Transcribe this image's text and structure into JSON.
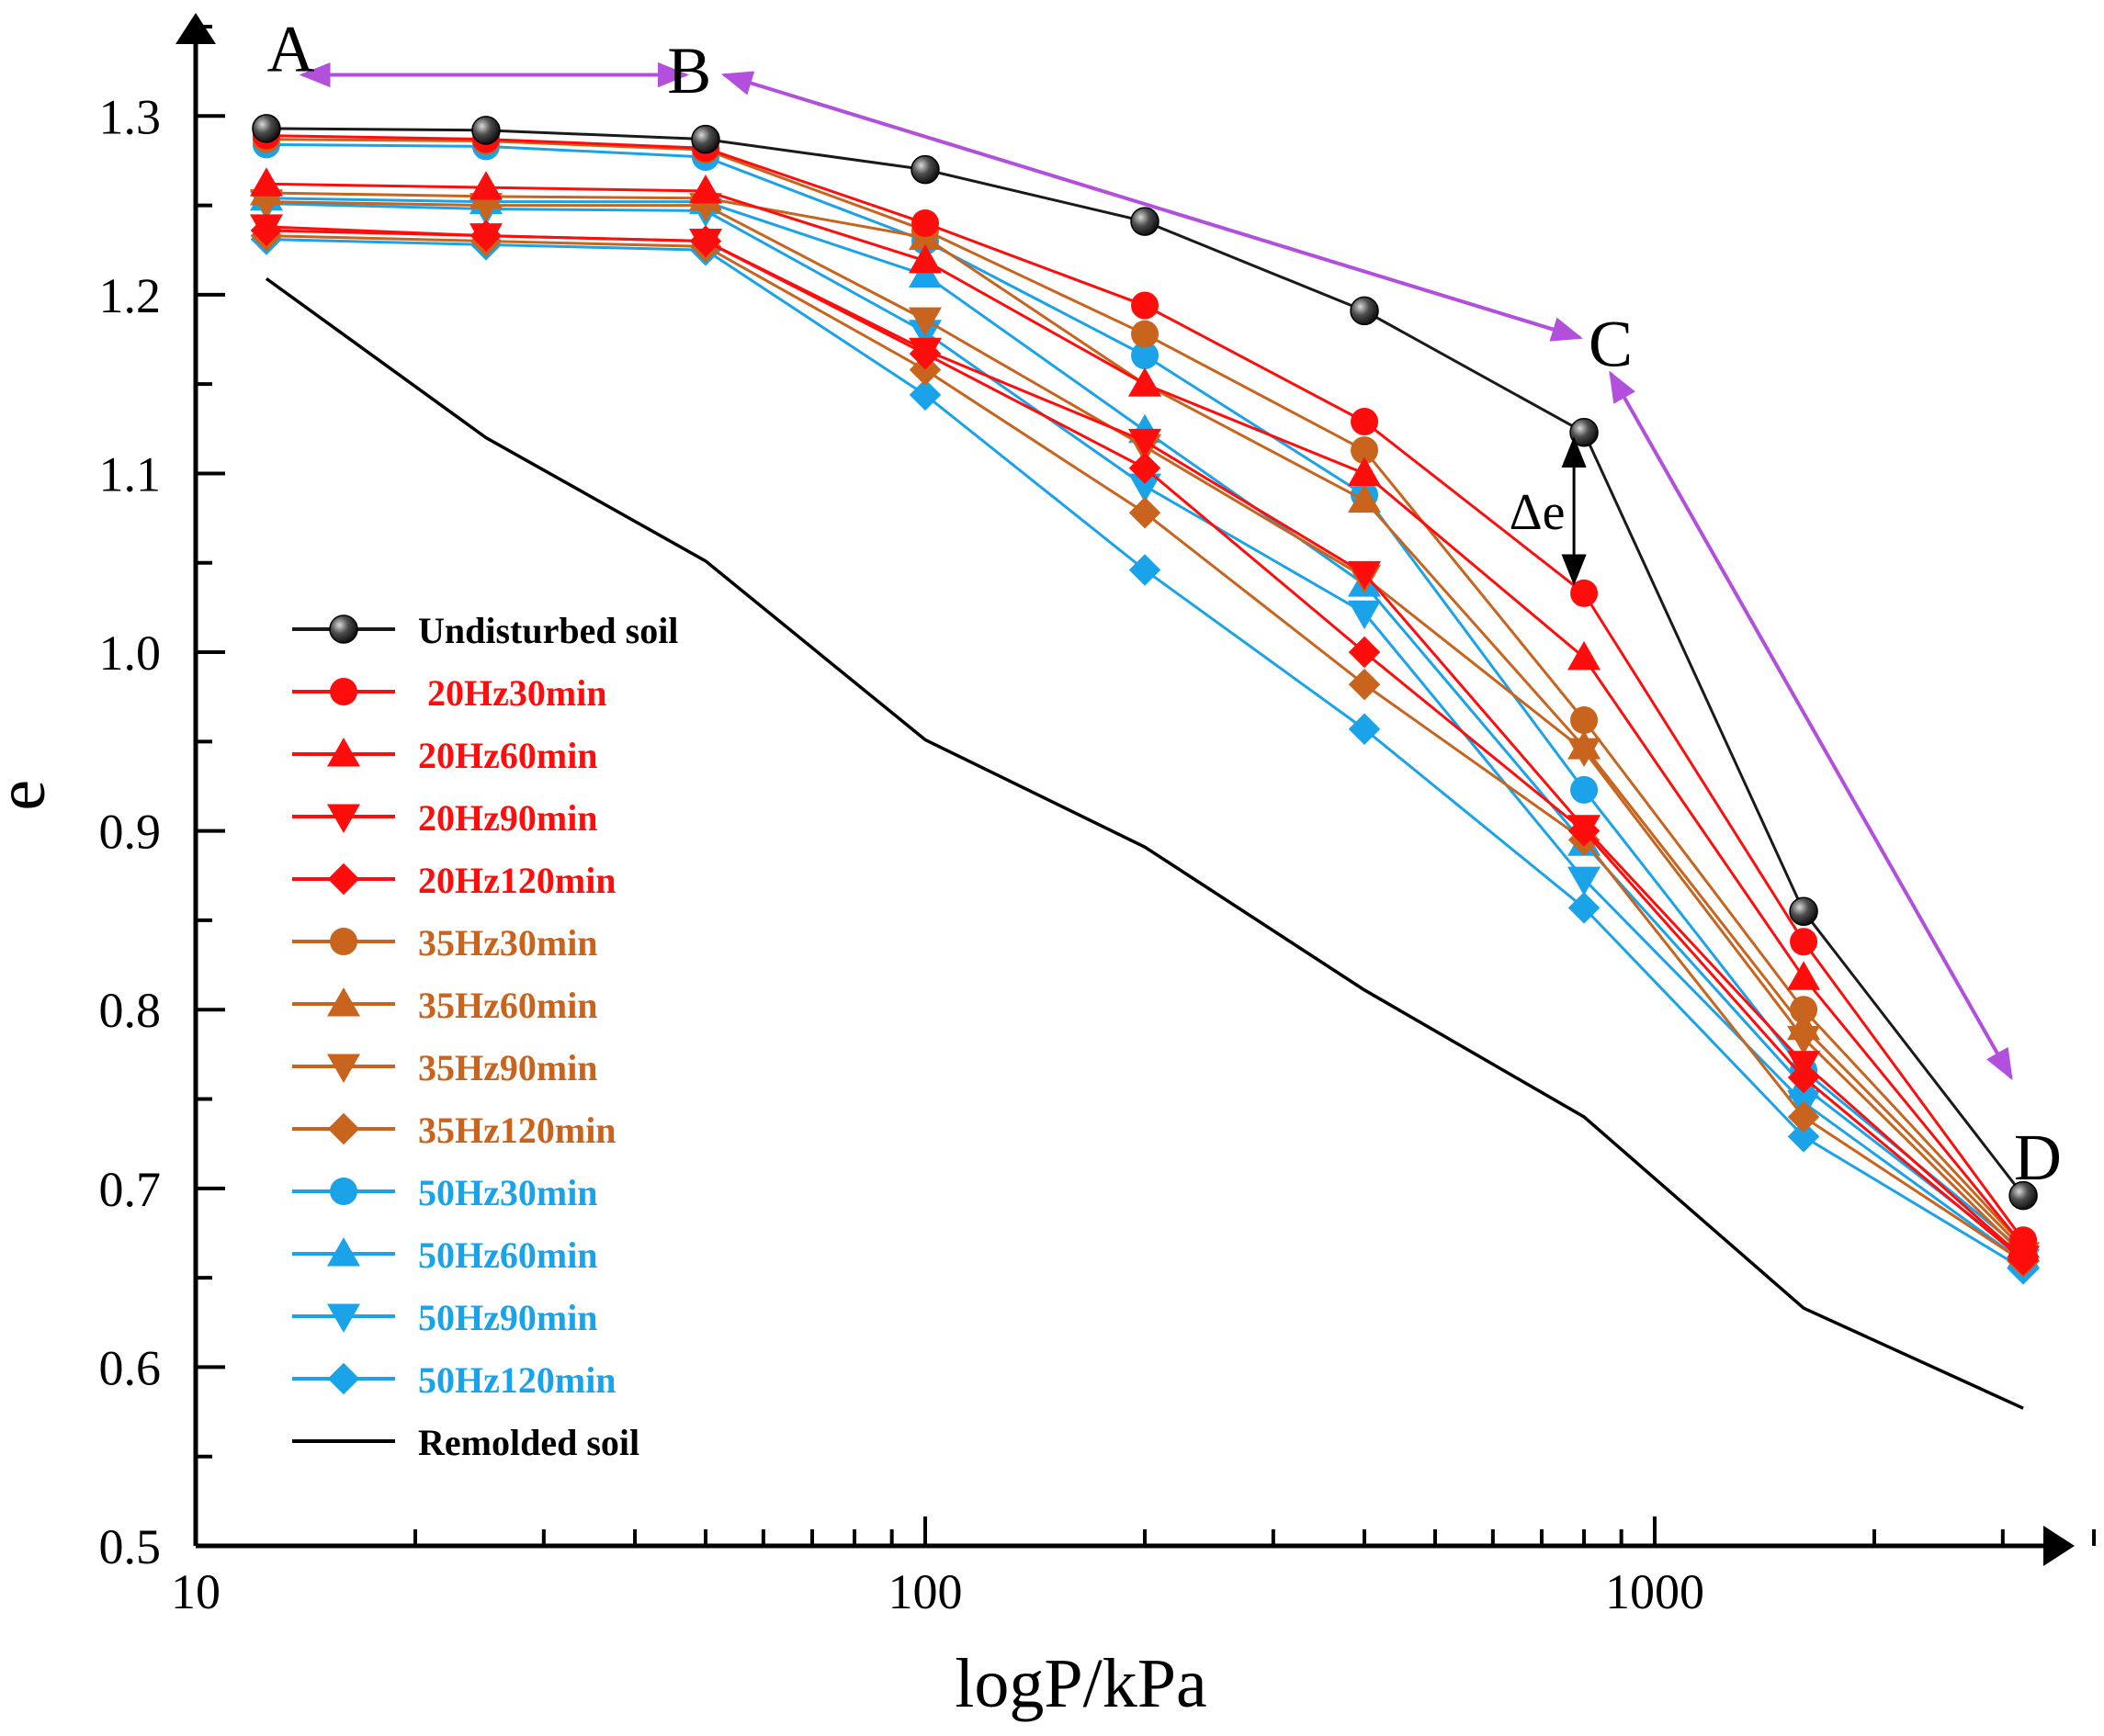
{
  "chart_data": {
    "type": "line",
    "title": "",
    "xlabel": "logP/kPa",
    "ylabel": "e",
    "x_scale": "log",
    "xlim": [
      10,
      4000
    ],
    "ylim": [
      0.5,
      1.35
    ],
    "x_ticks": [
      {
        "value": 10,
        "label": "10"
      },
      {
        "value": 100,
        "label": "100"
      },
      {
        "value": 1000,
        "label": "1000"
      }
    ],
    "y_ticks": [
      {
        "value": 0.5,
        "label": "0.5"
      },
      {
        "value": 0.6,
        "label": "0.6"
      },
      {
        "value": 0.7,
        "label": "0.7"
      },
      {
        "value": 0.8,
        "label": "0.8"
      },
      {
        "value": 0.9,
        "label": "0.9"
      },
      {
        "value": 1.0,
        "label": "1.0"
      },
      {
        "value": 1.1,
        "label": "1.1"
      },
      {
        "value": 1.2,
        "label": "1.2"
      },
      {
        "value": 1.3,
        "label": "1.3"
      }
    ],
    "legend_position": "left-middle",
    "colors": {
      "undisturbed": "#1a1a1a",
      "hz20": "#ff0d0d",
      "hz35": "#c8641e",
      "hz50": "#1aa3e8",
      "remolded": "#000000",
      "arrows": "#b24fdc",
      "axis": "#000000"
    },
    "x": [
      12.5,
      25,
      50,
      100,
      200,
      400,
      800,
      1600,
      3200
    ],
    "series": [
      {
        "name": "Undisturbed soil",
        "color": "#1a1a1a",
        "marker": "sphere",
        "legend_color": "#000000",
        "values": [
          1.293,
          1.292,
          1.287,
          1.27,
          1.241,
          1.191,
          1.123,
          0.855,
          0.696
        ]
      },
      {
        "name": " 20Hz30min",
        "color": "#ff0d0d",
        "marker": "circle",
        "values": [
          1.289,
          1.287,
          1.282,
          1.24,
          1.194,
          1.129,
          1.033,
          0.838,
          0.671
        ]
      },
      {
        "name": "20Hz60min",
        "color": "#ff0d0d",
        "marker": "triangle-up",
        "values": [
          1.262,
          1.26,
          1.258,
          1.219,
          1.15,
          1.1,
          0.997,
          0.818,
          0.668
        ]
      },
      {
        "name": "20Hz90min",
        "color": "#ff0d0d",
        "marker": "triangle-down",
        "values": [
          1.238,
          1.233,
          1.23,
          1.169,
          1.118,
          1.044,
          0.902,
          0.77,
          0.661
        ]
      },
      {
        "name": "20Hz120min",
        "color": "#ff0d0d",
        "marker": "diamond",
        "values": [
          1.236,
          1.233,
          1.23,
          1.167,
          1.103,
          1.0,
          0.9,
          0.762,
          0.66
        ]
      },
      {
        "name": "35Hz30min",
        "color": "#c8641e",
        "marker": "circle",
        "values": [
          1.287,
          1.286,
          1.281,
          1.236,
          1.178,
          1.113,
          0.962,
          0.8,
          0.668
        ]
      },
      {
        "name": "35Hz60min",
        "color": "#c8641e",
        "marker": "triangle-up",
        "values": [
          1.257,
          1.255,
          1.254,
          1.232,
          1.15,
          1.085,
          0.947,
          0.79,
          0.666
        ]
      },
      {
        "name": "35Hz90min",
        "color": "#c8641e",
        "marker": "triangle-down",
        "values": [
          1.252,
          1.25,
          1.25,
          1.186,
          1.115,
          1.042,
          0.945,
          0.784,
          0.663
        ]
      },
      {
        "name": "35Hz120min",
        "color": "#c8641e",
        "marker": "diamond",
        "values": [
          1.233,
          1.23,
          1.227,
          1.158,
          1.078,
          0.982,
          0.895,
          0.74,
          0.659
        ]
      },
      {
        "name": "50Hz30min",
        "color": "#1aa3e8",
        "marker": "circle",
        "values": [
          1.284,
          1.283,
          1.277,
          1.23,
          1.166,
          1.088,
          0.923,
          0.766,
          0.665
        ]
      },
      {
        "name": "50Hz60min",
        "color": "#1aa3e8",
        "marker": "triangle-up",
        "values": [
          1.254,
          1.252,
          1.252,
          1.211,
          1.124,
          1.038,
          0.893,
          0.757,
          0.662
        ]
      },
      {
        "name": "50Hz90min",
        "color": "#1aa3e8",
        "marker": "triangle-down",
        "values": [
          1.251,
          1.248,
          1.247,
          1.179,
          1.093,
          1.022,
          0.873,
          0.748,
          0.659
        ]
      },
      {
        "name": "50Hz120min",
        "color": "#1aa3e8",
        "marker": "diamond",
        "values": [
          1.231,
          1.228,
          1.225,
          1.144,
          1.046,
          0.957,
          0.857,
          0.729,
          0.655
        ]
      },
      {
        "name": "Remolded soil",
        "color": "#000000",
        "marker": "none",
        "values": [
          1.209,
          1.12,
          1.051,
          0.951,
          0.891,
          0.811,
          0.74,
          0.633,
          0.577
        ]
      }
    ],
    "annotations": [
      {
        "label": "A",
        "x": 13.5,
        "y": 1.325
      },
      {
        "label": "B",
        "x": 47.5,
        "y": 1.313
      },
      {
        "label": "C",
        "x": 870,
        "y": 1.16
      },
      {
        "label": "D",
        "x": 3350,
        "y": 0.705
      },
      {
        "label": "Δe",
        "x": 690,
        "y": 1.069
      }
    ],
    "arrows": [
      {
        "from": [
          14,
          1.323
        ],
        "to": [
          47,
          1.323
        ],
        "both": true
      },
      {
        "from": [
          53,
          1.323
        ],
        "to": [
          790,
          1.176
        ],
        "both": true
      },
      {
        "from": [
          870,
          1.156
        ],
        "to": [
          3080,
          0.762
        ],
        "both": true
      }
    ],
    "delta_e_arrow": {
      "x": 775,
      "from": 1.119,
      "to": 1.039
    }
  }
}
